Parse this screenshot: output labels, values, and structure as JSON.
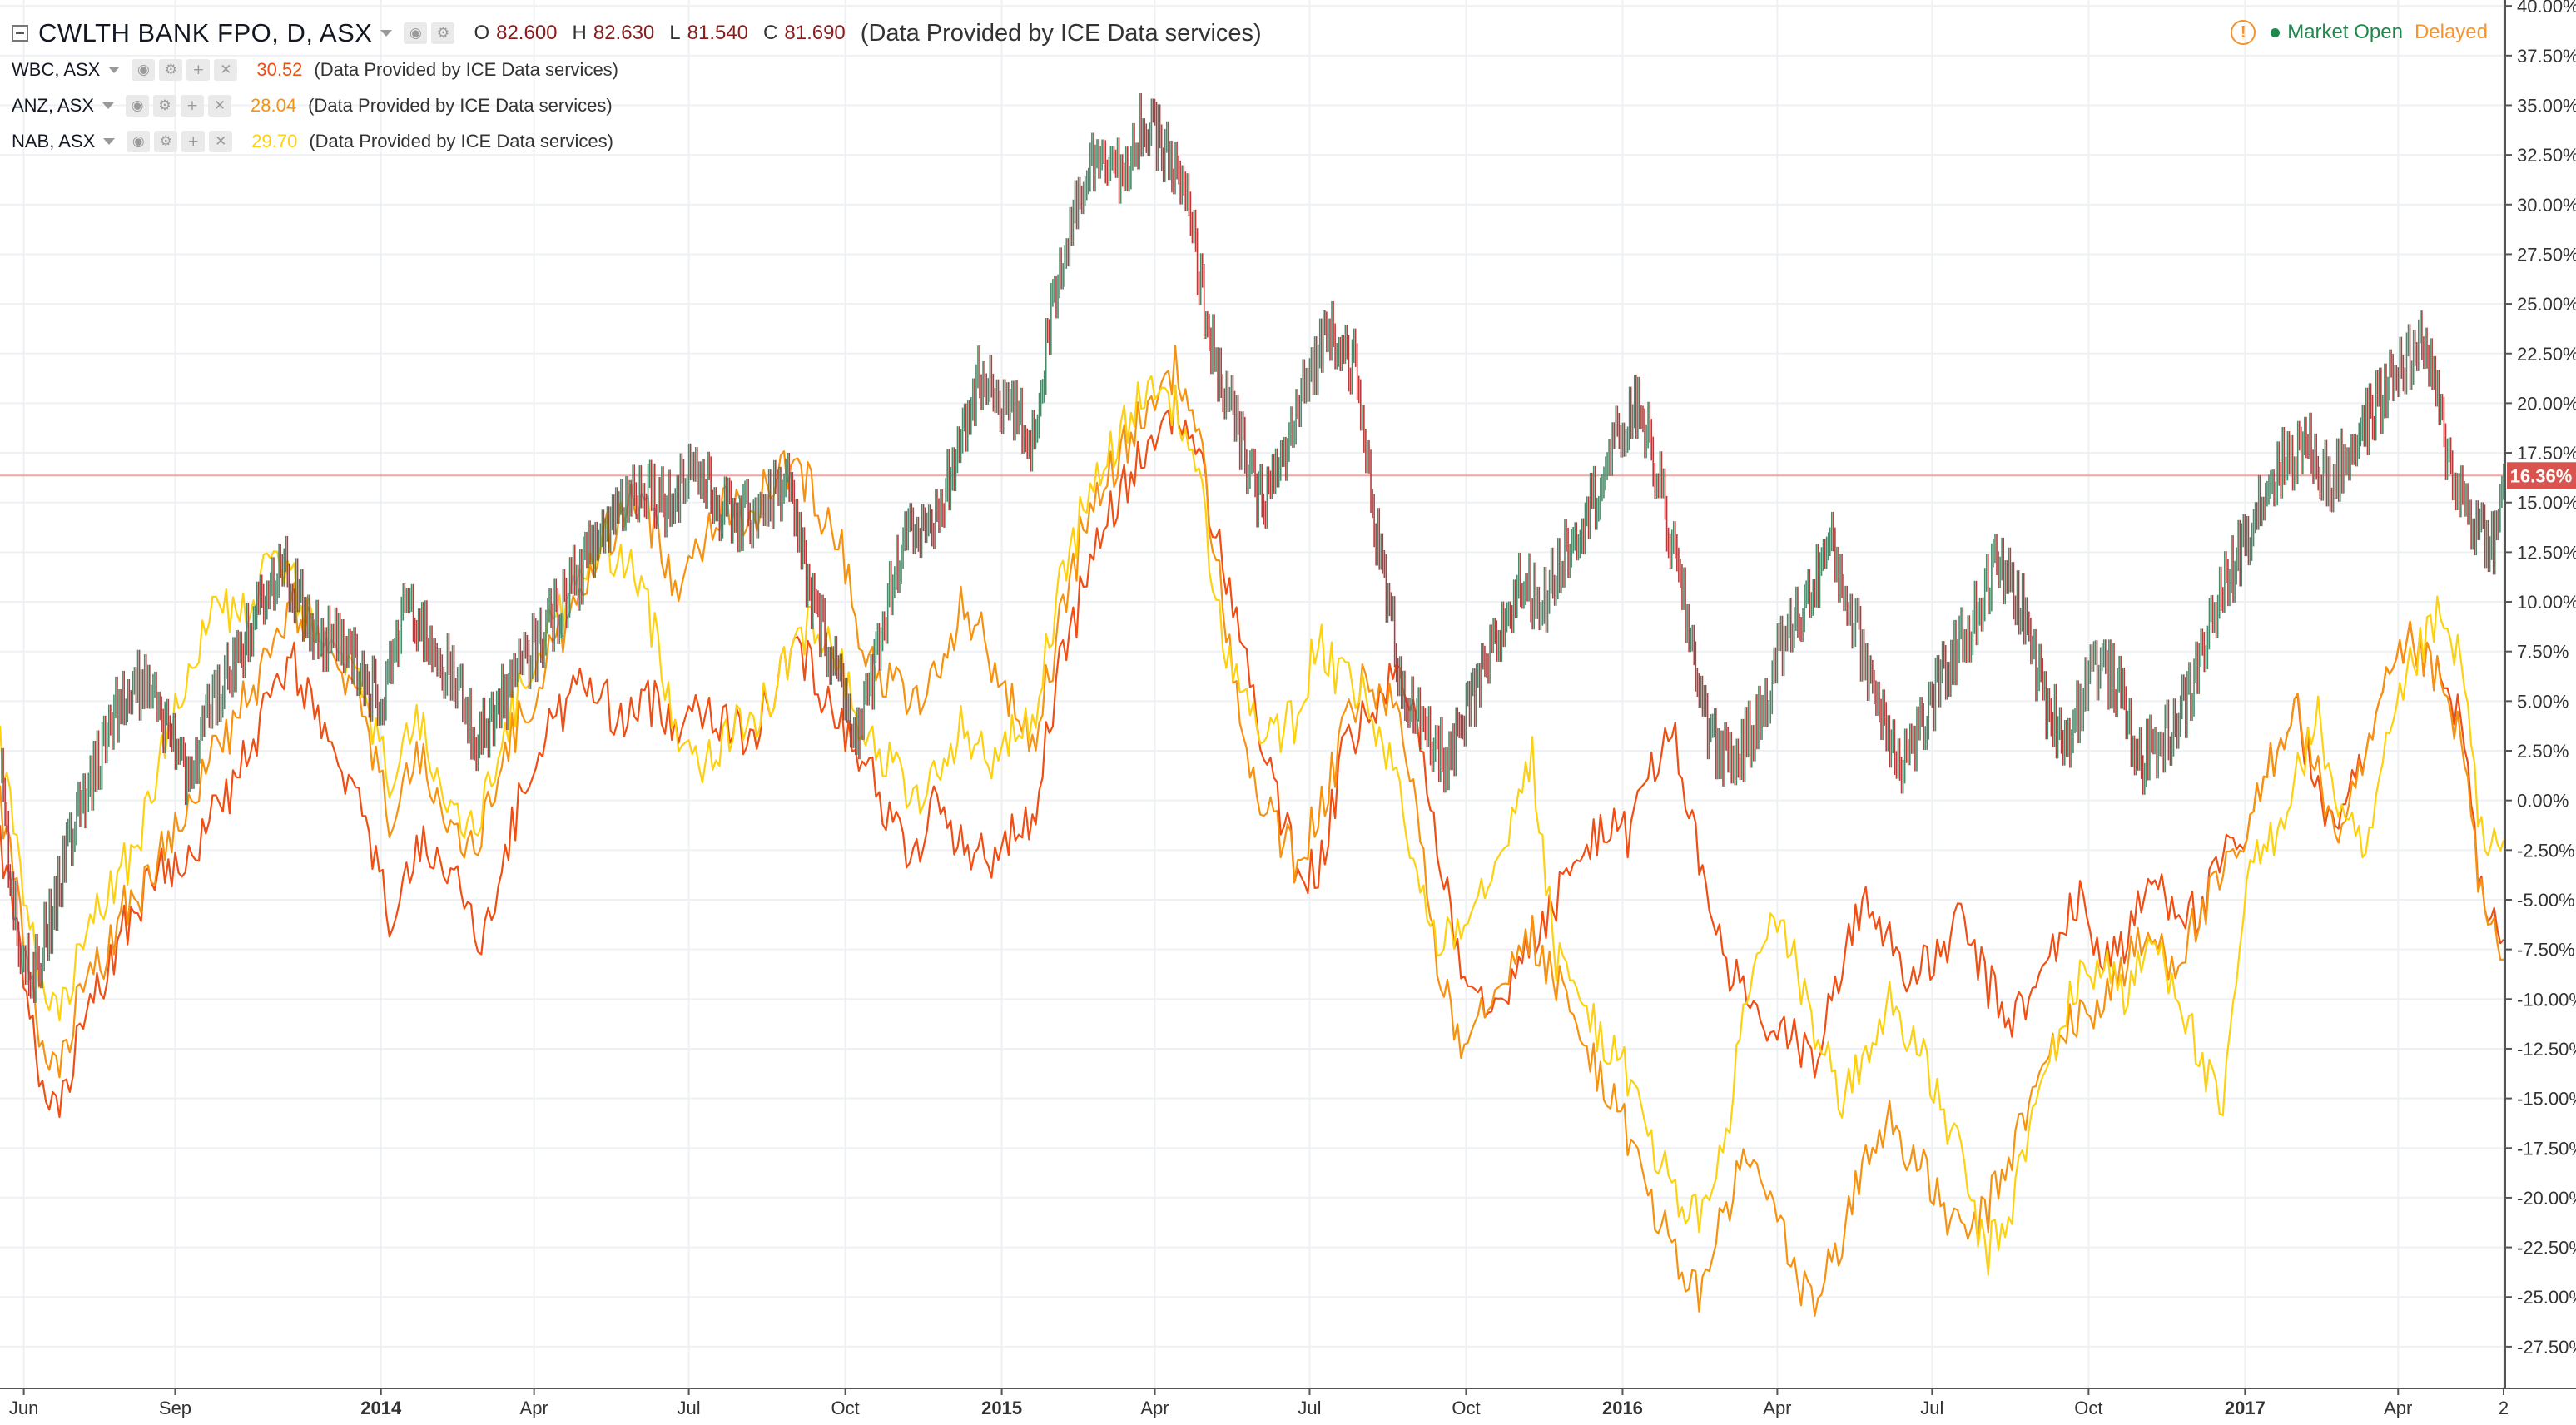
{
  "legend": {
    "main": {
      "symbol": "CWLTH BANK FPO, D, ASX",
      "o_label": "O",
      "o": "82.600",
      "h_label": "H",
      "h": "82.630",
      "l_label": "L",
      "l": "81.540",
      "c_label": "C",
      "c": "81.690",
      "provider": "(Data Provided by ICE Data services)"
    },
    "compare": [
      {
        "symbol": "WBC, ASX",
        "value": "30.52",
        "color": "#f04e13",
        "provider": "(Data Provided by ICE Data services)"
      },
      {
        "symbol": "ANZ, ASX",
        "value": "28.04",
        "color": "#f7920f",
        "provider": "(Data Provided by ICE Data services)"
      },
      {
        "symbol": "NAB, ASX",
        "value": "29.70",
        "color": "#fdd10f",
        "provider": "(Data Provided by ICE Data services)"
      }
    ]
  },
  "status": {
    "market": "Market Open",
    "delay": "Delayed"
  },
  "icons": {
    "collapse": "collapse-icon",
    "eye": "eye-icon",
    "settings": "gear-icon",
    "add": "plus-icon",
    "remove": "close-icon",
    "warning": "warning-icon",
    "status": "status-dot-icon"
  },
  "chart_data": {
    "type": "line",
    "price_scale": "percent",
    "grid": true,
    "colors": {
      "cba_up": "#4a8a6a",
      "cba_down": "#b43c3c",
      "wbc": "#f04e13",
      "anz": "#f7920f",
      "nab": "#fdd10f",
      "last_label_bg": "#d9534f",
      "last_line": "#f0a6a0"
    },
    "x_ticks": [
      "Jun",
      "Sep",
      "2014",
      "Apr",
      "Jul",
      "Oct",
      "2015",
      "Apr",
      "Jul",
      "Oct",
      "2016",
      "Apr",
      "Jul",
      "Oct",
      "2017",
      "Apr",
      "2"
    ],
    "x_range": [
      "2013-05-22",
      "2017-06-03"
    ],
    "y_ticks": [
      "40.00%",
      "37.50%",
      "35.00%",
      "32.50%",
      "30.00%",
      "27.50%",
      "25.00%",
      "22.50%",
      "20.00%",
      "17.50%",
      "15.00%",
      "12.50%",
      "10.00%",
      "7.50%",
      "5.00%",
      "2.50%",
      "0.00%",
      "-2.50%",
      "-5.00%",
      "-7.50%",
      "-10.00%",
      "-12.50%",
      "-15.00%",
      "-17.50%",
      "-20.00%",
      "-22.50%",
      "-25.00%",
      "-27.50%"
    ],
    "ylim": [
      -29.6,
      40.3
    ],
    "last_value_label": "16.36%",
    "last_value": 16.36,
    "series": [
      {
        "symbol": "CWLTH BANK FPO",
        "style": "candles",
        "color": "#4a8a6a",
        "dates": [
          "2013-05-22",
          "2013-05-28",
          "2013-06-03",
          "2013-06-10",
          "2013-06-17",
          "2013-06-24",
          "2013-07-01",
          "2013-07-08",
          "2013-07-15",
          "2013-07-22",
          "2013-08-01",
          "2013-08-15",
          "2013-08-27",
          "2013-09-10",
          "2013-09-24",
          "2013-10-08",
          "2013-10-22",
          "2013-11-05",
          "2013-11-19",
          "2013-12-03",
          "2013-12-17",
          "2014-01-02",
          "2014-01-16",
          "2014-01-30",
          "2014-02-13",
          "2014-02-27",
          "2014-03-13",
          "2014-03-27",
          "2014-04-10",
          "2014-04-24",
          "2014-05-08",
          "2014-05-22",
          "2014-06-05",
          "2014-06-19",
          "2014-07-03",
          "2014-07-17",
          "2014-07-31",
          "2014-08-14",
          "2014-08-28",
          "2014-09-11",
          "2014-09-25",
          "2014-10-09",
          "2014-10-23",
          "2014-11-06",
          "2014-11-20",
          "2014-12-04",
          "2014-12-18",
          "2015-01-05",
          "2015-01-19",
          "2015-02-02",
          "2015-02-16",
          "2015-03-02",
          "2015-03-16",
          "2015-03-23",
          "2015-04-06",
          "2015-04-20",
          "2015-05-04",
          "2015-05-18",
          "2015-06-01",
          "2015-06-15",
          "2015-06-29",
          "2015-07-13",
          "2015-07-27",
          "2015-08-10",
          "2015-08-24",
          "2015-09-07",
          "2015-09-21",
          "2015-10-05",
          "2015-10-19",
          "2015-11-02",
          "2015-11-16",
          "2015-11-30",
          "2015-12-14",
          "2015-12-28",
          "2016-01-11",
          "2016-01-25",
          "2016-02-08",
          "2016-02-22",
          "2016-03-07",
          "2016-03-21",
          "2016-04-04",
          "2016-04-18",
          "2016-05-02",
          "2016-05-16",
          "2016-05-30",
          "2016-06-13",
          "2016-06-27",
          "2016-07-11",
          "2016-07-25",
          "2016-08-08",
          "2016-08-22",
          "2016-09-05",
          "2016-09-19",
          "2016-10-03",
          "2016-10-17",
          "2016-10-31",
          "2016-11-14",
          "2016-11-28",
          "2016-12-12",
          "2016-12-26",
          "2017-01-09",
          "2017-01-23",
          "2017-02-06",
          "2017-02-20",
          "2017-03-06",
          "2017-03-20",
          "2017-04-03",
          "2017-04-17",
          "2017-05-01",
          "2017-05-15",
          "2017-05-29",
          "2017-06-02"
        ],
        "values": [
          2,
          -4,
          -7,
          -9,
          -7,
          -5,
          -2,
          0,
          1,
          3,
          5,
          6,
          4,
          1,
          5,
          7,
          10,
          12,
          9,
          8,
          7,
          5,
          10,
          8,
          6,
          3,
          5,
          7,
          9,
          11,
          13,
          15,
          16,
          15,
          17,
          15,
          14,
          15,
          16,
          10,
          7,
          3,
          9,
          14,
          13,
          17,
          21,
          20,
          18,
          26,
          31,
          33,
          31,
          34,
          33,
          30,
          23,
          19,
          15,
          17,
          21,
          24,
          22,
          13,
          6,
          3,
          2,
          5,
          8,
          11,
          10,
          13,
          15,
          18,
          20,
          15,
          9,
          3,
          2,
          4,
          8,
          10,
          13,
          9,
          5,
          2,
          4,
          7,
          9,
          12,
          10,
          5,
          3,
          7,
          6,
          2,
          3,
          5,
          9,
          12,
          15,
          17,
          18,
          16,
          18,
          20,
          22,
          23,
          17,
          14,
          13,
          16.36
        ]
      },
      {
        "symbol": "WBC",
        "style": "line",
        "color": "#f04e13",
        "dates": [
          "2013-05-22",
          "2013-06-03",
          "2013-06-14",
          "2013-06-24",
          "2013-07-08",
          "2013-07-22",
          "2013-08-05",
          "2013-08-19",
          "2013-09-02",
          "2013-09-16",
          "2013-09-30",
          "2013-10-14",
          "2013-10-28",
          "2013-11-11",
          "2013-11-25",
          "2013-12-09",
          "2013-12-23",
          "2014-01-06",
          "2014-01-20",
          "2014-02-03",
          "2014-02-17",
          "2014-03-03",
          "2014-03-17",
          "2014-03-31",
          "2014-04-14",
          "2014-04-28",
          "2014-05-12",
          "2014-05-26",
          "2014-06-09",
          "2014-06-23",
          "2014-07-07",
          "2014-07-21",
          "2014-08-04",
          "2014-08-18",
          "2014-09-01",
          "2014-09-15",
          "2014-09-29",
          "2014-10-13",
          "2014-10-27",
          "2014-11-10",
          "2014-11-24",
          "2014-12-08",
          "2014-12-22",
          "2015-01-05",
          "2015-01-19",
          "2015-02-02",
          "2015-02-16",
          "2015-03-02",
          "2015-03-16",
          "2015-03-30",
          "2015-04-13",
          "2015-04-27",
          "2015-05-11",
          "2015-05-25",
          "2015-06-08",
          "2015-06-22",
          "2015-07-06",
          "2015-07-20",
          "2015-08-03",
          "2015-08-17",
          "2015-08-31",
          "2015-09-14",
          "2015-09-28",
          "2015-10-12",
          "2015-10-26",
          "2015-11-09",
          "2015-11-23",
          "2015-12-07",
          "2015-12-21",
          "2016-01-04",
          "2016-01-18",
          "2016-02-01",
          "2016-02-15",
          "2016-02-29",
          "2016-03-14",
          "2016-03-28",
          "2016-04-11",
          "2016-04-25",
          "2016-05-09",
          "2016-05-23",
          "2016-06-06",
          "2016-06-20",
          "2016-07-04",
          "2016-07-18",
          "2016-08-01",
          "2016-08-15",
          "2016-08-29",
          "2016-09-12",
          "2016-09-26",
          "2016-10-10",
          "2016-10-24",
          "2016-11-07",
          "2016-11-21",
          "2016-12-05",
          "2016-12-19",
          "2017-01-02",
          "2017-01-16",
          "2017-01-30",
          "2017-02-13",
          "2017-02-27",
          "2017-03-13",
          "2017-03-27",
          "2017-04-10",
          "2017-04-24",
          "2017-05-08",
          "2017-05-22",
          "2017-06-02"
        ],
        "values": [
          -2,
          -8,
          -14,
          -16,
          -12,
          -9,
          -6,
          -4,
          -3,
          -2,
          0,
          2,
          5,
          7,
          4,
          1,
          -1,
          -6,
          -3,
          -2,
          -5,
          -7,
          -2,
          2,
          4,
          6,
          5,
          4,
          5,
          4,
          5,
          4,
          3,
          5,
          8,
          6,
          4,
          2,
          -1,
          -3,
          0,
          -2,
          -3,
          -2,
          -1,
          6,
          10,
          14,
          16,
          18,
          20,
          17,
          12,
          7,
          1,
          -3,
          -4,
          2,
          4,
          6,
          5,
          -2,
          -8,
          -10,
          -9,
          -7,
          -5,
          -3,
          -1,
          -2,
          2,
          3,
          -3,
          -8,
          -10,
          -12,
          -12,
          -13,
          -8,
          -5,
          -7,
          -9,
          -8,
          -6,
          -9,
          -11,
          -10,
          -7,
          -5,
          -8,
          -7,
          -4,
          -5,
          -6,
          -3,
          -2,
          2,
          5,
          0,
          -1,
          2,
          6,
          8,
          6,
          4,
          -6,
          -7
        ]
      },
      {
        "symbol": "ANZ",
        "style": "line",
        "color": "#f7920f",
        "dates": [
          "2013-05-22",
          "2013-06-03",
          "2013-06-14",
          "2013-06-24",
          "2013-07-08",
          "2013-07-22",
          "2013-08-05",
          "2013-08-19",
          "2013-09-02",
          "2013-09-16",
          "2013-09-30",
          "2013-10-14",
          "2013-10-28",
          "2013-11-11",
          "2013-11-25",
          "2013-12-09",
          "2013-12-23",
          "2014-01-06",
          "2014-01-20",
          "2014-02-03",
          "2014-02-17",
          "2014-03-03",
          "2014-03-17",
          "2014-03-31",
          "2014-04-14",
          "2014-04-28",
          "2014-05-12",
          "2014-05-26",
          "2014-06-09",
          "2014-06-23",
          "2014-07-07",
          "2014-07-21",
          "2014-08-04",
          "2014-08-18",
          "2014-09-01",
          "2014-09-15",
          "2014-09-29",
          "2014-10-13",
          "2014-10-27",
          "2014-11-10",
          "2014-11-24",
          "2014-12-08",
          "2014-12-22",
          "2015-01-05",
          "2015-01-19",
          "2015-02-02",
          "2015-02-16",
          "2015-03-02",
          "2015-03-16",
          "2015-03-30",
          "2015-04-13",
          "2015-04-27",
          "2015-05-11",
          "2015-05-25",
          "2015-06-08",
          "2015-06-22",
          "2015-07-06",
          "2015-07-20",
          "2015-08-03",
          "2015-08-17",
          "2015-08-31",
          "2015-09-14",
          "2015-09-28",
          "2015-10-12",
          "2015-10-26",
          "2015-11-09",
          "2015-11-23",
          "2015-12-07",
          "2015-12-21",
          "2016-01-04",
          "2016-01-18",
          "2016-02-01",
          "2016-02-15",
          "2016-02-29",
          "2016-03-14",
          "2016-03-28",
          "2016-04-11",
          "2016-04-25",
          "2016-05-09",
          "2016-05-23",
          "2016-06-06",
          "2016-06-20",
          "2016-07-04",
          "2016-07-18",
          "2016-08-01",
          "2016-08-15",
          "2016-08-29",
          "2016-09-12",
          "2016-09-26",
          "2016-10-10",
          "2016-10-24",
          "2016-11-07",
          "2016-11-21",
          "2016-12-05",
          "2016-12-19",
          "2017-01-02",
          "2017-01-16",
          "2017-01-30",
          "2017-02-13",
          "2017-02-27",
          "2017-03-13",
          "2017-03-27",
          "2017-04-10",
          "2017-04-24",
          "2017-05-08",
          "2017-05-22",
          "2017-06-02"
        ],
        "values": [
          0,
          -6,
          -12,
          -14,
          -10,
          -8,
          -5,
          -4,
          -1,
          1,
          3,
          5,
          7,
          10,
          8,
          6,
          4,
          -1,
          2,
          1,
          -3,
          -1,
          3,
          5,
          8,
          10,
          13,
          15,
          14,
          11,
          13,
          15,
          14,
          16,
          17,
          15,
          13,
          7,
          6,
          5,
          6,
          10,
          8,
          5,
          3,
          8,
          13,
          16,
          18,
          20,
          22,
          18,
          10,
          2,
          -1,
          -3,
          -1,
          3,
          6,
          5,
          1,
          -8,
          -12,
          -10,
          -8,
          -7,
          -9,
          -12,
          -14,
          -17,
          -20,
          -23,
          -25,
          -21,
          -18,
          -20,
          -24,
          -25,
          -22,
          -18,
          -16,
          -18,
          -20,
          -22,
          -21,
          -18,
          -15,
          -12,
          -11,
          -10,
          -8,
          -7,
          -8,
          -6,
          -4,
          -2,
          2,
          5,
          1,
          -2,
          2,
          6,
          8,
          6,
          3,
          -6,
          -8
        ]
      },
      {
        "symbol": "NAB",
        "style": "line",
        "color": "#fdd10f",
        "dates": [
          "2013-05-22",
          "2013-06-03",
          "2013-06-14",
          "2013-06-24",
          "2013-07-08",
          "2013-07-22",
          "2013-08-05",
          "2013-08-19",
          "2013-09-02",
          "2013-09-16",
          "2013-09-30",
          "2013-10-14",
          "2013-10-28",
          "2013-11-11",
          "2013-11-25",
          "2013-12-09",
          "2013-12-23",
          "2014-01-06",
          "2014-01-20",
          "2014-02-03",
          "2014-02-17",
          "2014-03-03",
          "2014-03-17",
          "2014-03-31",
          "2014-04-14",
          "2014-04-28",
          "2014-05-12",
          "2014-05-26",
          "2014-06-09",
          "2014-06-23",
          "2014-07-07",
          "2014-07-21",
          "2014-08-04",
          "2014-08-18",
          "2014-09-01",
          "2014-09-15",
          "2014-09-29",
          "2014-10-13",
          "2014-10-27",
          "2014-11-10",
          "2014-11-24",
          "2014-12-08",
          "2014-12-22",
          "2015-01-05",
          "2015-01-19",
          "2015-02-02",
          "2015-02-16",
          "2015-03-02",
          "2015-03-16",
          "2015-03-30",
          "2015-04-13",
          "2015-04-27",
          "2015-05-11",
          "2015-05-25",
          "2015-06-08",
          "2015-06-22",
          "2015-07-06",
          "2015-07-20",
          "2015-08-03",
          "2015-08-17",
          "2015-08-31",
          "2015-09-14",
          "2015-09-28",
          "2015-10-12",
          "2015-10-26",
          "2015-11-09",
          "2015-11-23",
          "2015-12-07",
          "2015-12-21",
          "2016-01-04",
          "2016-01-18",
          "2016-02-01",
          "2016-02-15",
          "2016-02-29",
          "2016-03-14",
          "2016-03-28",
          "2016-04-11",
          "2016-04-25",
          "2016-05-09",
          "2016-05-23",
          "2016-06-06",
          "2016-06-20",
          "2016-07-04",
          "2016-07-18",
          "2016-08-01",
          "2016-08-15",
          "2016-08-29",
          "2016-09-12",
          "2016-09-26",
          "2016-10-10",
          "2016-10-24",
          "2016-11-07",
          "2016-11-21",
          "2016-12-05",
          "2016-12-19",
          "2017-01-02",
          "2017-01-16",
          "2017-01-30",
          "2017-02-13",
          "2017-02-27",
          "2017-03-13",
          "2017-03-27",
          "2017-04-10",
          "2017-04-24",
          "2017-05-08",
          "2017-05-22",
          "2017-06-02"
        ],
        "values": [
          3,
          -4,
          -9,
          -11,
          -8,
          -5,
          -3,
          0,
          5,
          8,
          10,
          9,
          12,
          11,
          8,
          7,
          5,
          1,
          4,
          2,
          -2,
          0,
          4,
          7,
          9,
          11,
          13,
          12,
          9,
          4,
          2,
          3,
          4,
          5,
          8,
          9,
          7,
          3,
          2,
          0,
          1,
          4,
          2,
          3,
          4,
          10,
          14,
          17,
          19,
          21,
          20,
          16,
          8,
          5,
          3,
          4,
          8,
          6,
          5,
          2,
          -3,
          -7,
          -6,
          -4,
          -1,
          2,
          -8,
          -10,
          -12,
          -14,
          -17,
          -20,
          -21,
          -18,
          -10,
          -6,
          -8,
          -12,
          -15,
          -13,
          -10,
          -12,
          -15,
          -18,
          -23,
          -21,
          -16,
          -12,
          -9,
          -8,
          -10,
          -7,
          -9,
          -13,
          -16,
          -4,
          -2,
          1,
          4,
          -1,
          -3,
          3,
          7,
          9,
          7,
          -3,
          -2
        ]
      }
    ]
  }
}
